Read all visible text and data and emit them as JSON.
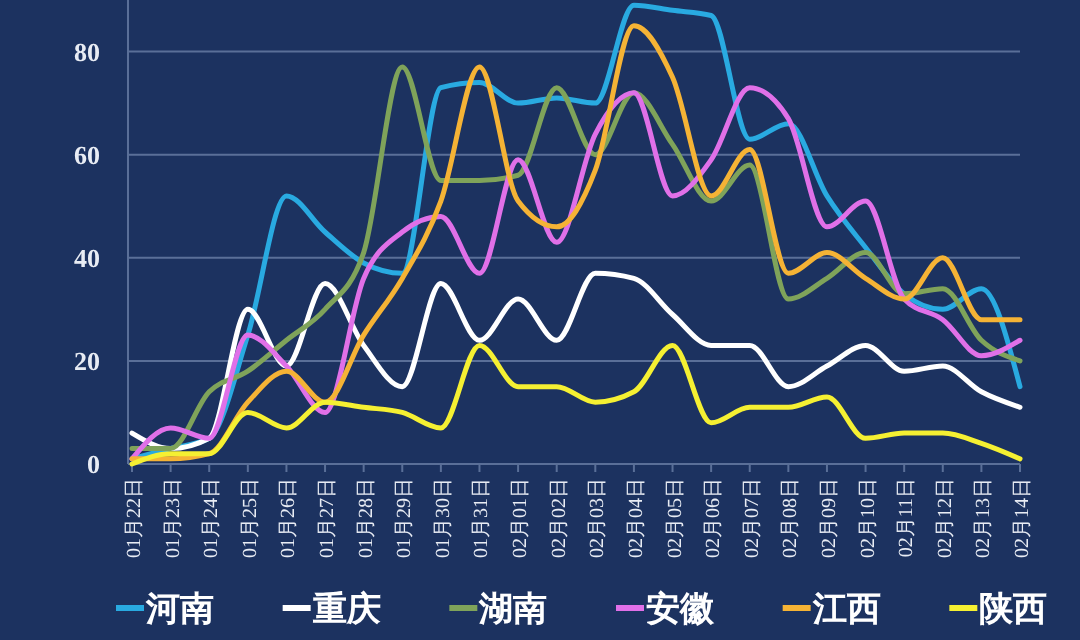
{
  "chart_data": {
    "type": "line",
    "categories": [
      "01月22日",
      "01月23日",
      "01月24日",
      "01月25日",
      "01月26日",
      "01月27日",
      "01月28日",
      "01月29日",
      "01月30日",
      "01月31日",
      "02月01日",
      "02月02日",
      "02月03日",
      "02月04日",
      "02月05日",
      "02月06日",
      "02月07日",
      "02月08日",
      "02月09日",
      "02月10日",
      "02月11日",
      "02月12日",
      "02月13日",
      "02月14日"
    ],
    "series": [
      {
        "name": "河南",
        "color": "#29aae1",
        "values": [
          1,
          3,
          5,
          25,
          52,
          45,
          39,
          37,
          73,
          74,
          70,
          71,
          70,
          89,
          88,
          87,
          63,
          66,
          52,
          42,
          33,
          30,
          34,
          15
        ]
      },
      {
        "name": "重庆",
        "color": "#ffffff",
        "values": [
          6,
          3,
          5,
          30,
          19,
          35,
          23,
          15,
          35,
          24,
          32,
          24,
          37,
          36,
          29,
          23,
          23,
          15,
          19,
          23,
          18,
          19,
          14,
          11
        ]
      },
      {
        "name": "湖南",
        "color": "#7fa35a",
        "values": [
          3,
          3,
          14,
          18,
          24,
          30,
          41,
          77,
          55,
          55,
          56,
          73,
          60,
          72,
          62,
          51,
          58,
          32,
          36,
          41,
          33,
          34,
          24,
          20
        ]
      },
      {
        "name": "安徽",
        "color": "#e070e8",
        "values": [
          1,
          7,
          5,
          25,
          19,
          10,
          36,
          45,
          48,
          37,
          59,
          43,
          64,
          72,
          52,
          59,
          73,
          67,
          46,
          51,
          32,
          28,
          21,
          24
        ]
      },
      {
        "name": "江西",
        "color": "#f5b335",
        "values": [
          1,
          1,
          2,
          12,
          18,
          12,
          25,
          36,
          51,
          77,
          51,
          46,
          57,
          85,
          75,
          52,
          61,
          37,
          41,
          36,
          32,
          40,
          28,
          28
        ]
      },
      {
        "name": "陕西",
        "color": "#f5f032",
        "values": [
          0,
          2,
          2,
          10,
          7,
          12,
          11,
          10,
          7,
          23,
          15,
          15,
          12,
          14,
          23,
          8,
          11,
          11,
          13,
          5,
          6,
          6,
          4,
          1
        ]
      }
    ],
    "ylim": [
      0,
      90
    ],
    "yticks": [
      0,
      20,
      40,
      60,
      80
    ],
    "grid": "y",
    "legend": "bottom",
    "marker": "none",
    "line_style": "solid"
  }
}
